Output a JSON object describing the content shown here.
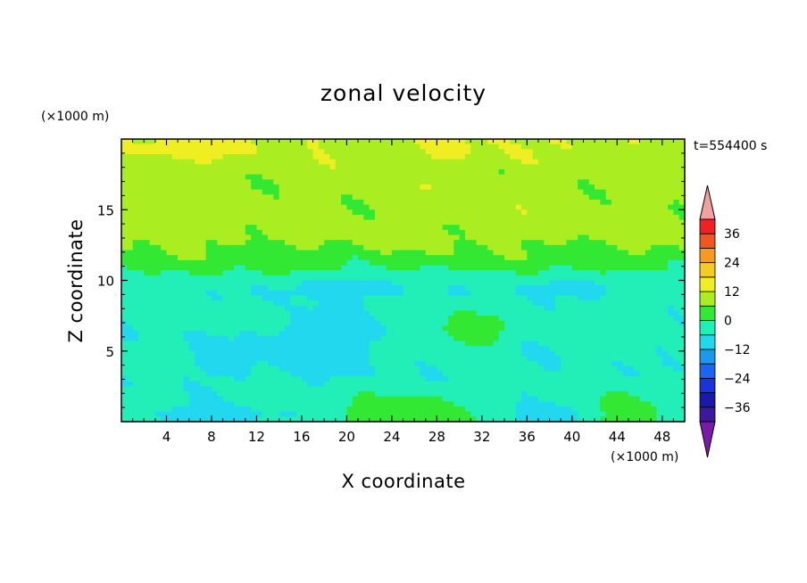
{
  "chart_data": {
    "type": "heatmap",
    "title": "zonal velocity",
    "xlabel": "X coordinate",
    "ylabel": "Z coordinate",
    "x_unit": "(×1000 m)",
    "y_unit": "(×1000 m)",
    "time_label": "t=554400 s",
    "xlim": [
      0,
      50
    ],
    "ylim": [
      0,
      20
    ],
    "x_ticks": [
      4,
      8,
      12,
      16,
      20,
      24,
      28,
      32,
      36,
      40,
      44,
      48
    ],
    "y_ticks": [
      5,
      10,
      15
    ],
    "colorbar": {
      "levels": [
        -42,
        -36,
        -30,
        -24,
        -18,
        -12,
        -6,
        0,
        6,
        12,
        18,
        24,
        30,
        36,
        42
      ],
      "tick_values": [
        36,
        24,
        12,
        0,
        -12,
        -24,
        -36
      ],
      "colors": [
        "#7a1aa8",
        "#3a1a9a",
        "#1a1aaa",
        "#1a33dd",
        "#1a66f0",
        "#1a9aee",
        "#22d8ee",
        "#22eeb8",
        "#33e833",
        "#aaee22",
        "#eeee22",
        "#f7cc22",
        "#f79922",
        "#f05522",
        "#ee2222",
        "#f2a0a0"
      ],
      "extend": "both"
    },
    "features": [
      {
        "x": 18,
        "z": 5.7,
        "value": -16,
        "rx": 3.0,
        "rz": 1.3
      },
      {
        "x": 18,
        "z": 5.5,
        "value": -8,
        "rx": 5.5,
        "rz": 3.0
      },
      {
        "x": 9,
        "z": 4.3,
        "value": -7,
        "rx": 5.0,
        "rz": 2.0
      },
      {
        "x": 41,
        "z": 4.5,
        "value": -6,
        "rx": 4.0,
        "rz": 2.5
      },
      {
        "x": 31,
        "z": 6.5,
        "value": 6,
        "rx": 3.0,
        "rz": 1.2
      },
      {
        "x": 25,
        "z": 0.5,
        "value": 5,
        "rx": 6.0,
        "rz": 1.5
      },
      {
        "x": 44,
        "z": 0.6,
        "value": 4,
        "rx": 4.0,
        "rz": 1.5
      },
      {
        "x": 8,
        "z": 0.4,
        "value": -12,
        "rx": 5.0,
        "rz": 0.8
      },
      {
        "x": 38,
        "z": 0.5,
        "value": -10,
        "rx": 4.0,
        "rz": 0.8
      },
      {
        "x": 29,
        "z": 19.2,
        "value": 13,
        "rx": 3.0,
        "rz": 1.2
      },
      {
        "x": 5,
        "z": 19.2,
        "value": 13,
        "rx": 6.0,
        "rz": 1.0
      },
      {
        "x": 20,
        "z": 9.5,
        "value": -8,
        "rx": 8.0,
        "rz": 1.0
      },
      {
        "x": 40,
        "z": 9.5,
        "value": -7,
        "rx": 8.0,
        "rz": 1.0
      }
    ]
  }
}
